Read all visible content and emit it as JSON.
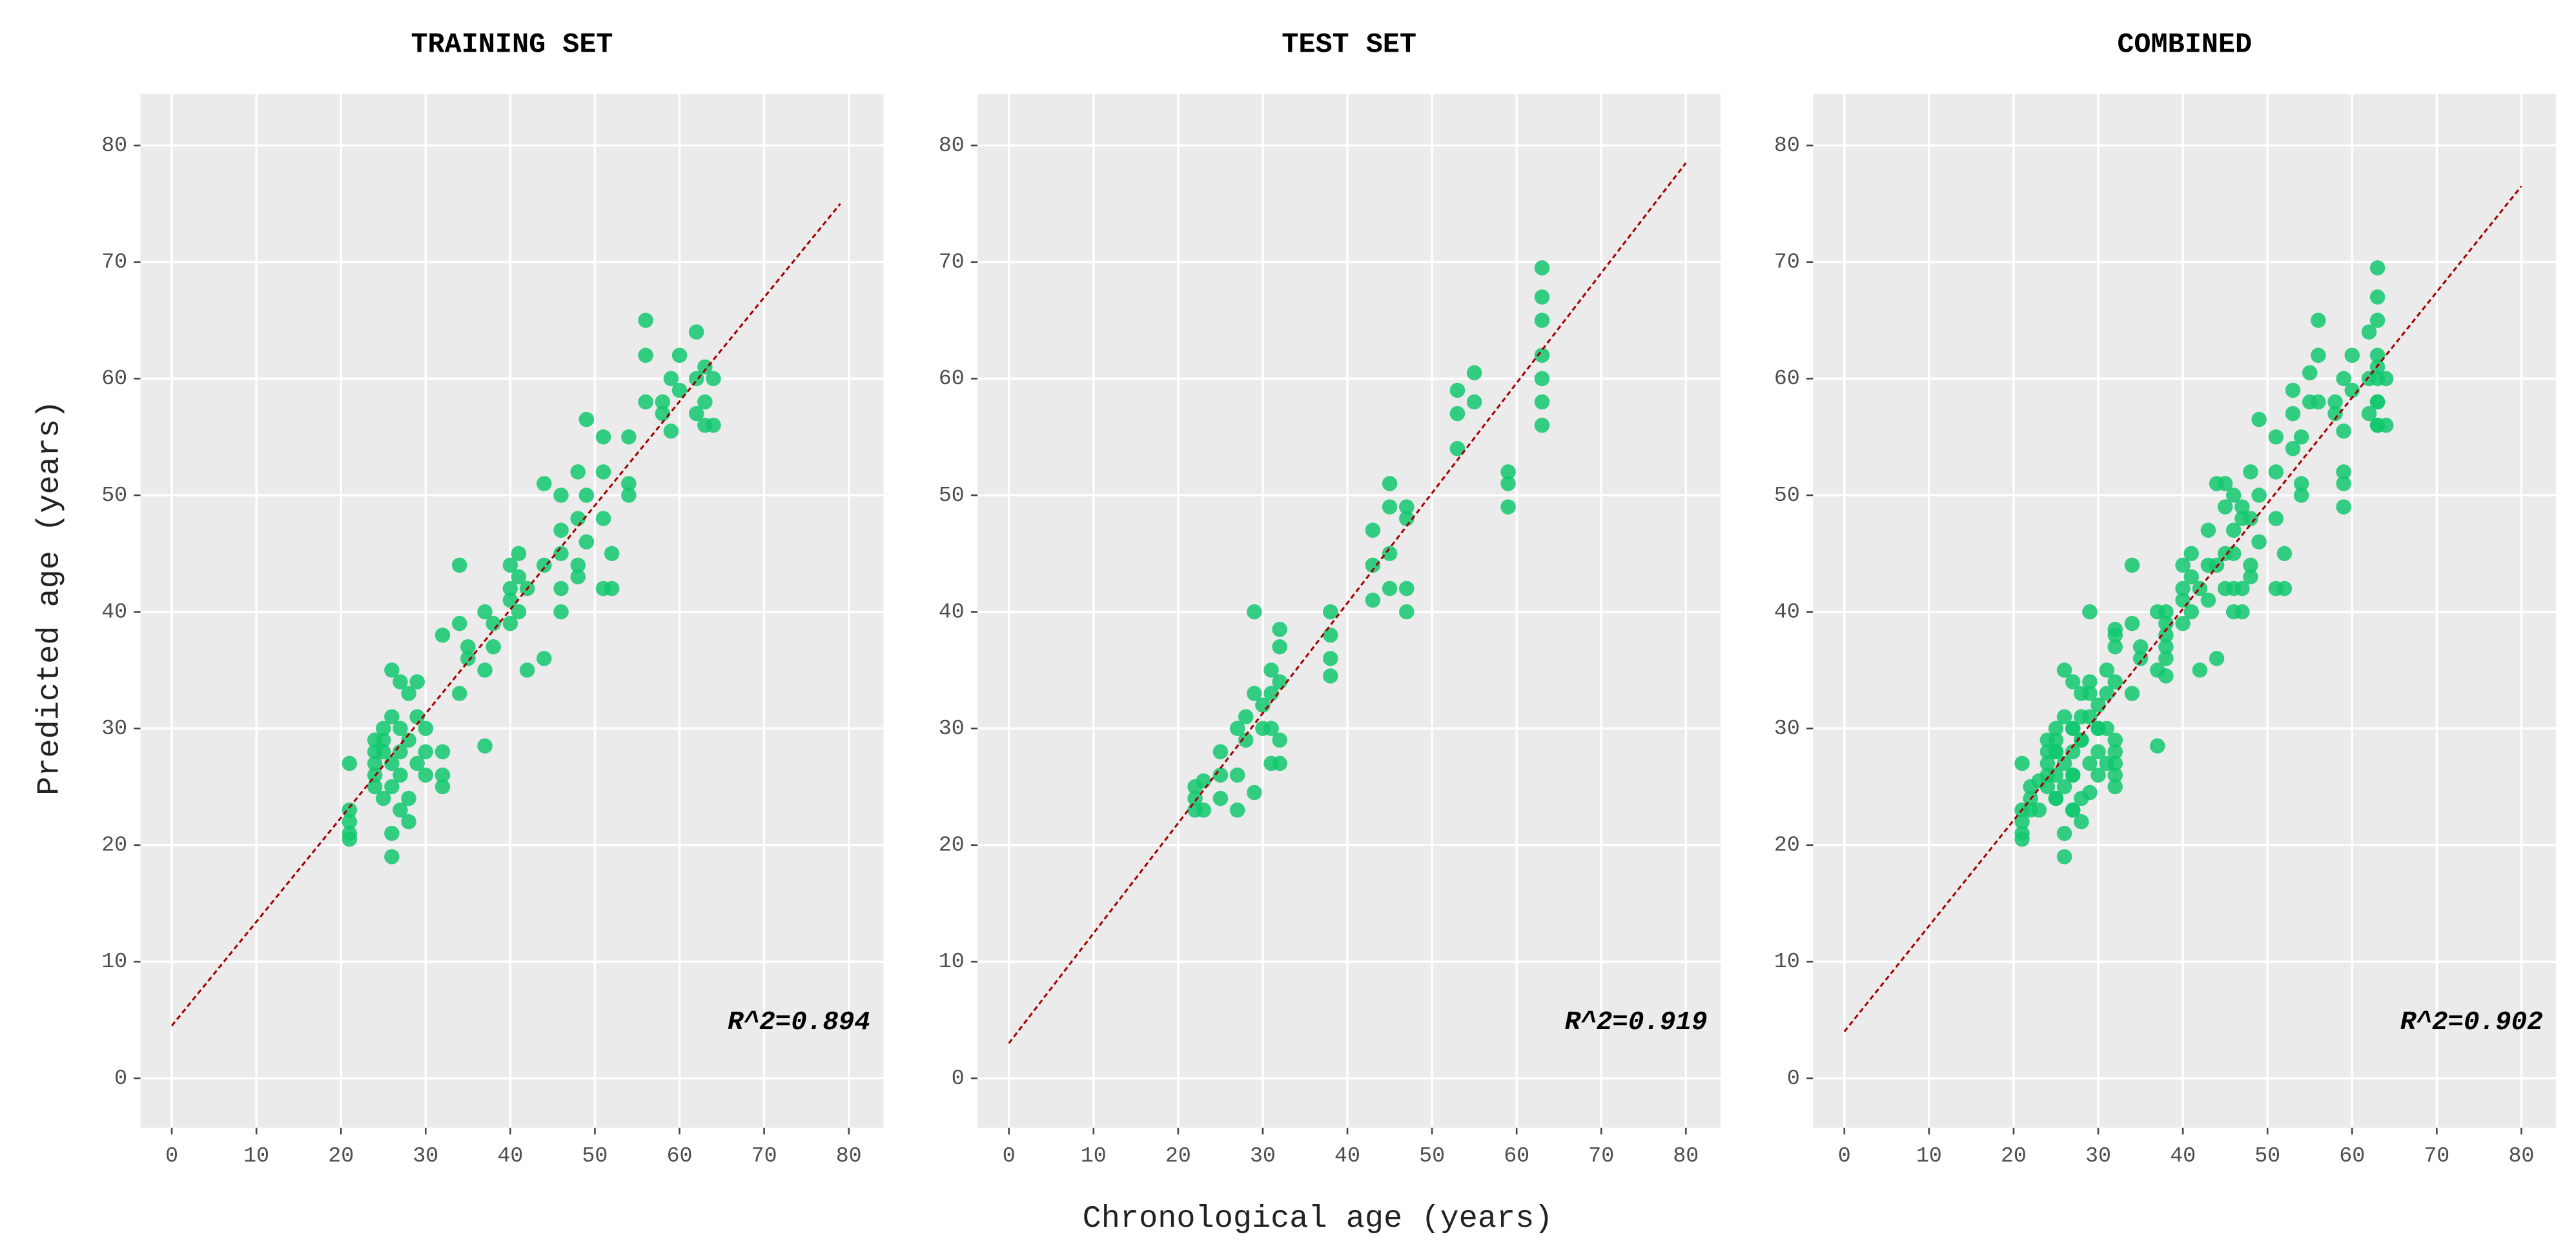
{
  "xlabel": "Chronological age (years)",
  "ylabel": "Predicted age (years)",
  "chart_data": [
    {
      "type": "scatter",
      "title": "TRAINING SET",
      "annotation": "R^2=0.894",
      "color": "#12C86E",
      "fit_color": "#A50000",
      "xlim": [
        -3.7,
        84.1
      ],
      "ylim": [
        -4.25,
        84.4
      ],
      "xticks": [
        0,
        10,
        20,
        30,
        40,
        50,
        60,
        70,
        80
      ],
      "yticks": [
        0,
        10,
        20,
        30,
        40,
        50,
        60,
        70,
        80
      ],
      "grid": true,
      "fit_x": [
        0,
        79
      ],
      "fit_y": [
        4.5,
        75
      ],
      "x": [
        21,
        21,
        21,
        21,
        21,
        24,
        24,
        24,
        24,
        24,
        25,
        25,
        25,
        25,
        26,
        26,
        26,
        26,
        26,
        26,
        27,
        27,
        27,
        27,
        27,
        28,
        28,
        28,
        28,
        29,
        29,
        29,
        30,
        30,
        30,
        32,
        32,
        32,
        32,
        34,
        34,
        34,
        35,
        35,
        37,
        37,
        37,
        38,
        38,
        40,
        40,
        40,
        40,
        41,
        41,
        41,
        42,
        42,
        44,
        44,
        44,
        46,
        46,
        46,
        46,
        46,
        48,
        48,
        48,
        48,
        49,
        49,
        49,
        51,
        51,
        51,
        51,
        52,
        52,
        54,
        54,
        54,
        56,
        56,
        56,
        58,
        58,
        59,
        59,
        60,
        60,
        62,
        62,
        62,
        63,
        63,
        63,
        64,
        64
      ],
      "values": [
        27,
        23,
        22,
        21,
        20.5,
        29,
        28,
        27,
        26,
        25,
        30,
        28,
        24,
        29,
        35,
        21,
        19,
        27,
        31,
        25,
        34,
        26,
        23,
        30,
        28,
        33,
        29,
        24,
        22,
        34,
        31,
        27,
        30,
        28,
        26,
        38,
        28,
        26,
        25,
        44,
        39,
        33,
        37,
        36,
        40,
        28.5,
        35,
        39,
        37,
        42,
        41,
        39,
        44,
        45,
        43,
        40,
        35,
        42,
        36,
        51,
        44,
        50,
        45,
        40,
        42,
        47,
        52,
        48,
        44,
        43,
        56.5,
        50,
        46,
        55,
        52,
        48,
        42,
        45,
        42,
        55,
        51,
        50,
        65,
        62,
        58,
        58,
        57,
        55.5,
        60,
        62,
        59,
        64,
        60,
        57,
        61,
        58,
        56,
        60,
        56
      ]
    },
    {
      "type": "scatter",
      "title": "TEST SET",
      "annotation": "R^2=0.919",
      "color": "#12C86E",
      "fit_color": "#A50000",
      "xlim": [
        -3.7,
        84.1
      ],
      "ylim": [
        -4.25,
        84.4
      ],
      "xticks": [
        0,
        10,
        20,
        30,
        40,
        50,
        60,
        70,
        80
      ],
      "yticks": [
        0,
        10,
        20,
        30,
        40,
        50,
        60,
        70,
        80
      ],
      "grid": true,
      "fit_x": [
        0,
        80
      ],
      "fit_y": [
        3,
        78.5
      ],
      "x": [
        22,
        22,
        22,
        23,
        23,
        25,
        25,
        25,
        27,
        27,
        27,
        28,
        28,
        29,
        29,
        29,
        30,
        30,
        31,
        31,
        31,
        31,
        32,
        32,
        32,
        32,
        32,
        38,
        38,
        38,
        38,
        43,
        43,
        43,
        45,
        45,
        45,
        45,
        47,
        47,
        47,
        47,
        53,
        53,
        53,
        55,
        55,
        59,
        59,
        59,
        63,
        63,
        63,
        63,
        63,
        63,
        63
      ],
      "values": [
        25,
        24,
        23,
        25.5,
        23,
        28,
        26,
        24,
        30,
        26,
        23,
        31,
        29,
        40,
        33,
        24.5,
        32,
        30,
        35,
        33,
        30,
        27,
        38.5,
        37,
        34,
        29,
        27,
        40,
        38,
        36,
        34.5,
        47,
        44,
        41,
        51,
        49,
        45,
        42,
        49,
        48,
        42,
        40,
        59,
        57,
        54,
        60.5,
        58,
        52,
        51,
        49,
        69.5,
        67,
        65,
        62,
        60,
        58,
        56
      ]
    },
    {
      "type": "scatter",
      "title": "COMBINED",
      "annotation": "R^2=0.902",
      "color": "#12C86E",
      "fit_color": "#A50000",
      "xlim": [
        -3.7,
        84.1
      ],
      "ylim": [
        -4.25,
        84.4
      ],
      "xticks": [
        0,
        10,
        20,
        30,
        40,
        50,
        60,
        70,
        80
      ],
      "yticks": [
        0,
        10,
        20,
        30,
        40,
        50,
        60,
        70,
        80
      ],
      "grid": true,
      "fit_x": [
        0,
        80
      ],
      "fit_y": [
        4,
        76.5
      ],
      "x": [
        21,
        21,
        21,
        21,
        21,
        24,
        24,
        24,
        24,
        24,
        25,
        25,
        25,
        25,
        26,
        26,
        26,
        26,
        26,
        26,
        27,
        27,
        27,
        27,
        27,
        28,
        28,
        28,
        28,
        29,
        29,
        29,
        30,
        30,
        30,
        32,
        32,
        32,
        32,
        34,
        34,
        34,
        35,
        35,
        37,
        37,
        37,
        38,
        38,
        40,
        40,
        40,
        40,
        41,
        41,
        41,
        42,
        42,
        44,
        44,
        44,
        46,
        46,
        46,
        46,
        46,
        48,
        48,
        48,
        48,
        49,
        49,
        49,
        51,
        51,
        51,
        51,
        52,
        52,
        54,
        54,
        54,
        56,
        56,
        56,
        58,
        58,
        59,
        59,
        60,
        60,
        62,
        62,
        62,
        63,
        63,
        63,
        64,
        64,
        22,
        22,
        22,
        23,
        23,
        25,
        25,
        25,
        27,
        27,
        27,
        28,
        28,
        29,
        29,
        29,
        30,
        30,
        31,
        31,
        31,
        31,
        32,
        32,
        32,
        32,
        32,
        38,
        38,
        38,
        38,
        43,
        43,
        43,
        45,
        45,
        45,
        45,
        47,
        47,
        47,
        47,
        53,
        53,
        53,
        55,
        55,
        59,
        59,
        59,
        63,
        63,
        63,
        63,
        63,
        63,
        63
      ],
      "values": [
        27,
        23,
        22,
        21,
        20.5,
        29,
        28,
        27,
        26,
        25,
        30,
        28,
        24,
        29,
        35,
        21,
        19,
        27,
        31,
        25,
        34,
        26,
        23,
        30,
        28,
        33,
        29,
        24,
        22,
        34,
        31,
        27,
        30,
        28,
        26,
        38,
        28,
        26,
        25,
        44,
        39,
        33,
        37,
        36,
        40,
        28.5,
        35,
        39,
        37,
        42,
        41,
        39,
        44,
        45,
        43,
        40,
        35,
        42,
        36,
        51,
        44,
        50,
        45,
        40,
        42,
        47,
        52,
        48,
        44,
        43,
        56.5,
        50,
        46,
        55,
        52,
        48,
        42,
        45,
        42,
        55,
        51,
        50,
        65,
        62,
        58,
        58,
        57,
        55.5,
        60,
        62,
        59,
        64,
        60,
        57,
        61,
        58,
        56,
        60,
        56,
        25,
        24,
        23,
        25.5,
        23,
        28,
        26,
        24,
        30,
        26,
        23,
        31,
        29,
        40,
        33,
        24.5,
        32,
        30,
        35,
        33,
        30,
        27,
        38.5,
        37,
        34,
        29,
        27,
        40,
        38,
        36,
        34.5,
        47,
        44,
        41,
        51,
        49,
        45,
        42,
        49,
        48,
        42,
        40,
        59,
        57,
        54,
        60.5,
        58,
        52,
        51,
        49,
        69.5,
        67,
        65,
        62,
        60,
        58,
        56
      ]
    }
  ]
}
